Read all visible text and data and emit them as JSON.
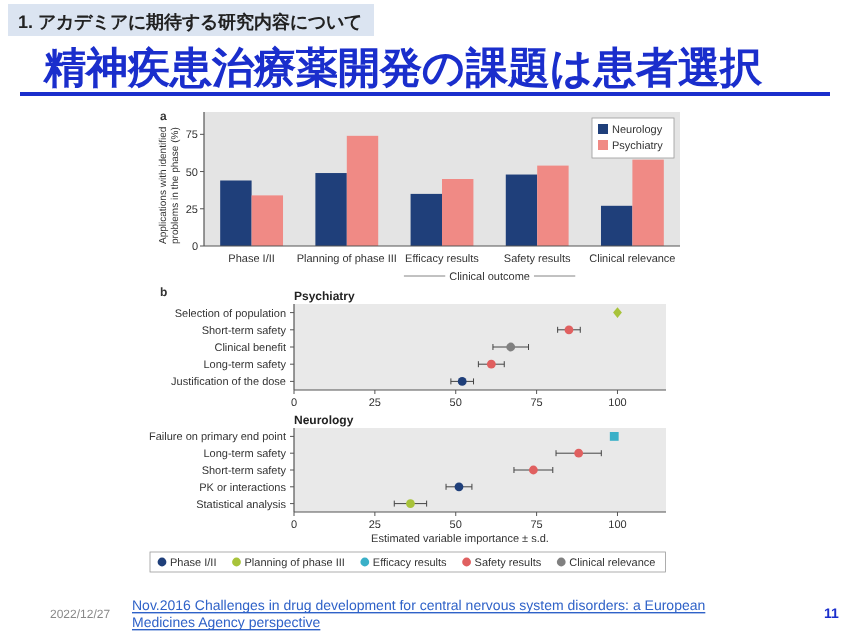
{
  "chart_data": [
    {
      "type": "other",
      "title": "精神疾患治療薬開発の課題は患者選択",
      "subtitle": "1. アカデミアに期待する研究内容について"
    },
    {
      "type": "bar",
      "ylabel": "Applications with identified problems in the phase (%)",
      "categories": [
        "Phase I/II",
        "Planning of phase III",
        "Efficacy results",
        "Safety results",
        "Clinical relevance"
      ],
      "series": [
        {
          "name": "Neurology",
          "color": "#1f3f7a",
          "values": [
            44,
            49,
            35,
            48,
            27
          ]
        },
        {
          "name": "Psychiatry",
          "color": "#f08a85",
          "values": [
            34,
            74,
            45,
            54,
            58
          ]
        }
      ],
      "ylim": [
        0,
        90
      ],
      "yticks": [
        0,
        25,
        50,
        75
      ],
      "legend": "top right",
      "annotations": [
        "a",
        "Clinical outcome"
      ]
    },
    {
      "type": "scatter",
      "orientation": "horizontal",
      "title": "Psychiatry",
      "categories": [
        "Selection of population",
        "Short-term safety",
        "Clinical benefit",
        "Long-term safety",
        "Justification of the dose"
      ],
      "series": [
        {
          "color": "#a8c33a",
          "marker": "diamond",
          "values": [
            100,
            null,
            null,
            null,
            null
          ]
        },
        {
          "color": "#e06060",
          "values": [
            null,
            85,
            null,
            61,
            null
          ],
          "errors": [
            null,
            3.5,
            null,
            4,
            null
          ]
        },
        {
          "color": "#808080",
          "values": [
            null,
            null,
            67,
            null,
            null
          ],
          "errors": [
            null,
            null,
            5.5,
            null,
            null
          ]
        },
        {
          "color": "#1f3f7a",
          "values": [
            null,
            null,
            null,
            null,
            52
          ],
          "errors": [
            null,
            null,
            null,
            null,
            3.5
          ]
        }
      ],
      "xlim": [
        0,
        115
      ],
      "xticks": [
        0,
        25,
        50,
        75,
        100
      ],
      "marker": "circle",
      "annotations": [
        "b"
      ]
    },
    {
      "type": "scatter",
      "orientation": "horizontal",
      "title": "Neurology",
      "xlabel": "Estimated variable importance ± s.d.",
      "categories": [
        "Failure on primary end point",
        "Long-term safety",
        "Short-term safety",
        "PK or interactions",
        "Statistical analysis"
      ],
      "series": [
        {
          "name": "Phase I/II",
          "color": "#1f3f7a",
          "values": [
            null,
            null,
            null,
            51,
            null
          ],
          "errors": [
            null,
            null,
            null,
            4,
            null
          ]
        },
        {
          "name": "Planning of phase III",
          "color": "#a8c33a",
          "values": [
            null,
            null,
            null,
            null,
            36
          ],
          "errors": [
            null,
            null,
            null,
            null,
            5
          ]
        },
        {
          "name": "Efficacy results",
          "color": "#3ab0c8",
          "marker": "square",
          "values": [
            99,
            null,
            null,
            null,
            null
          ]
        },
        {
          "name": "Safety results",
          "color": "#e06060",
          "values": [
            null,
            88,
            74,
            null,
            null
          ],
          "errors": [
            null,
            7,
            6,
            null,
            null
          ]
        },
        {
          "name": "Clinical relevance",
          "color": "#808080",
          "values": [
            null,
            null,
            null,
            null,
            null
          ]
        }
      ],
      "xlim": [
        0,
        115
      ],
      "xticks": [
        0,
        25,
        50,
        75,
        100
      ],
      "marker": "circle",
      "legend": "bottom",
      "annotations": [
        "2022/12/27",
        "Nov.2016 Challenges in drug development for central nervous system disorders: a European Medicines Agency perspective",
        "11"
      ]
    }
  ]
}
